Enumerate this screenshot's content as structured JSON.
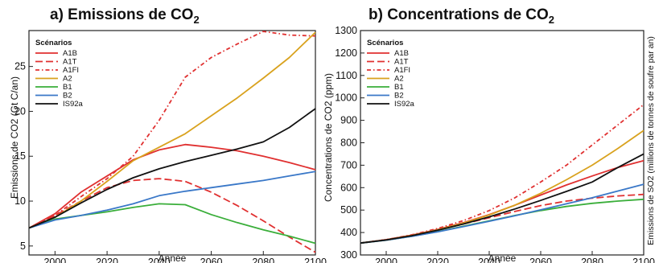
{
  "chart_data": [
    {
      "type": "line",
      "title": "a) Emissions de CO",
      "title_sub": "2",
      "xlabel": "Année",
      "ylabel": "Emissions de CO2 (Gt C/an)",
      "xlim": [
        1990,
        2100
      ],
      "ylim": [
        4,
        29
      ],
      "xticks": [
        2000,
        2020,
        2040,
        2060,
        2080,
        2100
      ],
      "yticks": [
        5,
        10,
        15,
        20,
        25
      ],
      "legend_title": "Scénarios",
      "legend_position": "top-left",
      "series": [
        {
          "name": "A1B",
          "color": "#e03030",
          "dash": "solid",
          "x": [
            1990,
            2000,
            2010,
            2020,
            2030,
            2040,
            2050,
            2060,
            2070,
            2080,
            2090,
            2100
          ],
          "y": [
            7.0,
            8.6,
            11.0,
            12.8,
            14.6,
            15.7,
            16.3,
            16.0,
            15.6,
            15.0,
            14.3,
            13.5
          ]
        },
        {
          "name": "A1T",
          "color": "#e03030",
          "dash": "longdash",
          "x": [
            1990,
            2000,
            2010,
            2020,
            2030,
            2040,
            2050,
            2060,
            2070,
            2080,
            2090,
            2100
          ],
          "y": [
            7.0,
            8.4,
            10.0,
            11.5,
            12.3,
            12.5,
            12.2,
            11.0,
            9.5,
            7.8,
            6.0,
            4.3
          ]
        },
        {
          "name": "A1FI",
          "color": "#e03030",
          "dash": "dashdot",
          "x": [
            1990,
            2000,
            2010,
            2020,
            2030,
            2040,
            2050,
            2060,
            2070,
            2080,
            2090,
            2100
          ],
          "y": [
            7.0,
            8.4,
            10.5,
            12.5,
            15.0,
            19.0,
            23.8,
            26.0,
            27.5,
            28.9,
            28.5,
            28.4
          ]
        },
        {
          "name": "A2",
          "color": "#d9a21e",
          "dash": "solid",
          "x": [
            1990,
            2000,
            2010,
            2020,
            2030,
            2040,
            2050,
            2060,
            2070,
            2080,
            2090,
            2100
          ],
          "y": [
            7.0,
            8.2,
            10.0,
            12.2,
            14.5,
            16.0,
            17.5,
            19.5,
            21.5,
            23.7,
            26.0,
            28.8
          ]
        },
        {
          "name": "B1",
          "color": "#3aae3a",
          "dash": "solid",
          "x": [
            1990,
            2000,
            2010,
            2020,
            2030,
            2040,
            2050,
            2060,
            2070,
            2080,
            2090,
            2100
          ],
          "y": [
            7.0,
            8.0,
            8.4,
            8.8,
            9.3,
            9.7,
            9.6,
            8.5,
            7.6,
            6.8,
            6.1,
            5.3
          ]
        },
        {
          "name": "B2",
          "color": "#3a78c8",
          "dash": "solid",
          "x": [
            1990,
            2000,
            2010,
            2020,
            2030,
            2040,
            2050,
            2060,
            2070,
            2080,
            2090,
            2100
          ],
          "y": [
            7.0,
            7.9,
            8.4,
            9.0,
            9.7,
            10.6,
            11.1,
            11.5,
            11.9,
            12.3,
            12.8,
            13.3
          ]
        },
        {
          "name": "IS92a",
          "color": "#111111",
          "dash": "solid",
          "x": [
            1990,
            2000,
            2010,
            2020,
            2030,
            2040,
            2050,
            2060,
            2070,
            2080,
            2090,
            2100
          ],
          "y": [
            7.0,
            8.2,
            9.8,
            11.3,
            12.6,
            13.6,
            14.4,
            15.1,
            15.8,
            16.6,
            18.2,
            20.3
          ]
        }
      ]
    },
    {
      "type": "line",
      "title": "b) Concentrations de CO",
      "title_sub": "2",
      "xlabel": "Année",
      "ylabel": "Concentrations de CO2 (ppm)",
      "ylabel_right": "Emissions de SO2 (millions de tonnes de soufre par an)",
      "xlim": [
        1990,
        2100
      ],
      "ylim": [
        300,
        1300
      ],
      "xticks": [
        2000,
        2020,
        2040,
        2060,
        2080,
        2100
      ],
      "yticks": [
        300,
        400,
        500,
        600,
        700,
        800,
        900,
        1000,
        1100,
        1200,
        1300
      ],
      "legend_title": "Scénarios",
      "legend_position": "top-left",
      "series": [
        {
          "name": "A1B",
          "color": "#e03030",
          "dash": "solid",
          "x": [
            1990,
            2000,
            2010,
            2020,
            2030,
            2040,
            2050,
            2060,
            2070,
            2080,
            2090,
            2100
          ],
          "y": [
            353,
            368,
            388,
            414,
            444,
            480,
            522,
            567,
            612,
            652,
            690,
            720
          ]
        },
        {
          "name": "A1T",
          "color": "#e03030",
          "dash": "longdash",
          "x": [
            1990,
            2000,
            2010,
            2020,
            2030,
            2040,
            2050,
            2060,
            2070,
            2080,
            2090,
            2100
          ],
          "y": [
            353,
            368,
            388,
            412,
            438,
            466,
            494,
            520,
            540,
            553,
            563,
            570
          ]
        },
        {
          "name": "A1FI",
          "color": "#e03030",
          "dash": "dashdot",
          "x": [
            1990,
            2000,
            2010,
            2020,
            2030,
            2040,
            2050,
            2060,
            2070,
            2080,
            2090,
            2100
          ],
          "y": [
            353,
            368,
            390,
            418,
            453,
            498,
            555,
            625,
            700,
            790,
            880,
            970
          ]
        },
        {
          "name": "A2",
          "color": "#d9a21e",
          "dash": "solid",
          "x": [
            1990,
            2000,
            2010,
            2020,
            2030,
            2040,
            2050,
            2060,
            2070,
            2080,
            2090,
            2100
          ],
          "y": [
            353,
            367,
            387,
            412,
            442,
            478,
            522,
            575,
            635,
            700,
            775,
            855
          ]
        },
        {
          "name": "B1",
          "color": "#3aae3a",
          "dash": "solid",
          "x": [
            1990,
            2000,
            2010,
            2020,
            2030,
            2040,
            2050,
            2060,
            2070,
            2080,
            2090,
            2100
          ],
          "y": [
            353,
            366,
            383,
            404,
            428,
            452,
            476,
            498,
            516,
            530,
            540,
            548
          ]
        },
        {
          "name": "B2",
          "color": "#3a78c8",
          "dash": "solid",
          "x": [
            1990,
            2000,
            2010,
            2020,
            2030,
            2040,
            2050,
            2060,
            2070,
            2080,
            2090,
            2100
          ],
          "y": [
            353,
            366,
            383,
            403,
            426,
            450,
            475,
            501,
            528,
            555,
            585,
            615
          ]
        },
        {
          "name": "IS92a",
          "color": "#111111",
          "dash": "solid",
          "x": [
            1990,
            2000,
            2010,
            2020,
            2030,
            2040,
            2050,
            2060,
            2070,
            2080,
            2090,
            2100
          ],
          "y": [
            353,
            367,
            386,
            410,
            438,
            470,
            505,
            543,
            583,
            625,
            690,
            750
          ]
        }
      ]
    }
  ]
}
